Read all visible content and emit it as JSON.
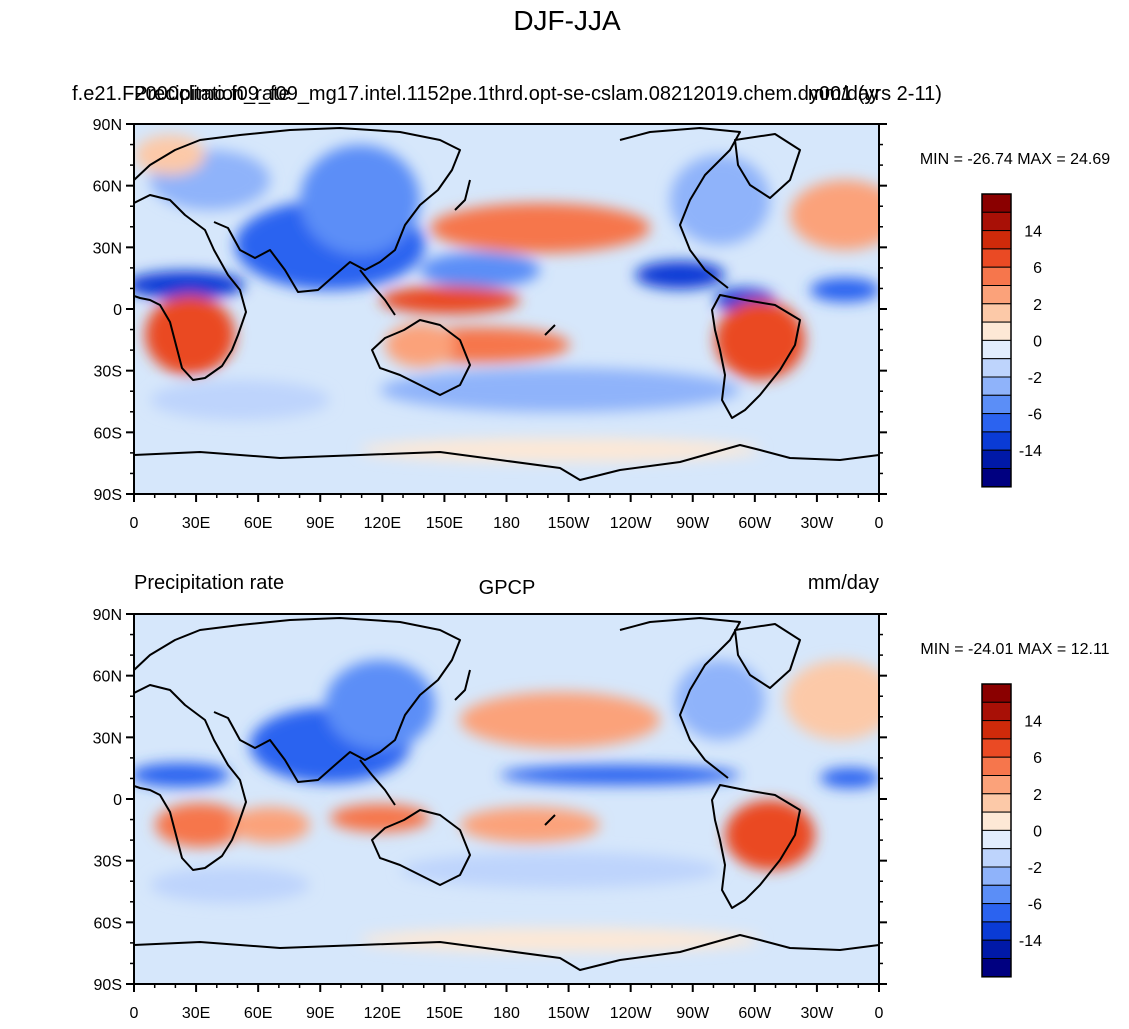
{
  "main_title": "DJF-JJA",
  "panels": [
    {
      "left_title": "Precipitation_rate",
      "center_title": "f.e21.F2000climo.f09_f09_mg17.intel.1152pe.1thrd.opt-se-cslam.08212019.chem.dy001 (yrs 2-11)",
      "right_title": "mm/day",
      "stats": "MIN = -26.74 MAX =  24.69"
    },
    {
      "left_title": "Precipitation rate",
      "center_title": "GPCP",
      "right_title": "mm/day",
      "stats": "MIN = -24.01 MAX =  12.11"
    }
  ],
  "lat_labels": [
    "90N",
    "60N",
    "30N",
    "0",
    "30S",
    "60S",
    "90S"
  ],
  "lon_labels": [
    "0",
    "30E",
    "60E",
    "90E",
    "120E",
    "150E",
    "180",
    "150W",
    "120W",
    "90W",
    "60W",
    "30W",
    "0"
  ],
  "colorbar": {
    "colors": [
      "#000080",
      "#0019a8",
      "#0a3bd6",
      "#2b63f0",
      "#5b8ef7",
      "#8fb3fa",
      "#bed4fc",
      "#e2edfd",
      "#fde8d6",
      "#fcc9a8",
      "#fba27a",
      "#f6764c",
      "#ea4a24",
      "#cf2a0a",
      "#a81006",
      "#8a0000"
    ],
    "labels": [
      "14",
      "6",
      "2",
      "0",
      "-2",
      "-6",
      "-14"
    ]
  },
  "colors": {
    "ocean_background": "#d6e7fb",
    "coast": "#000000"
  }
}
